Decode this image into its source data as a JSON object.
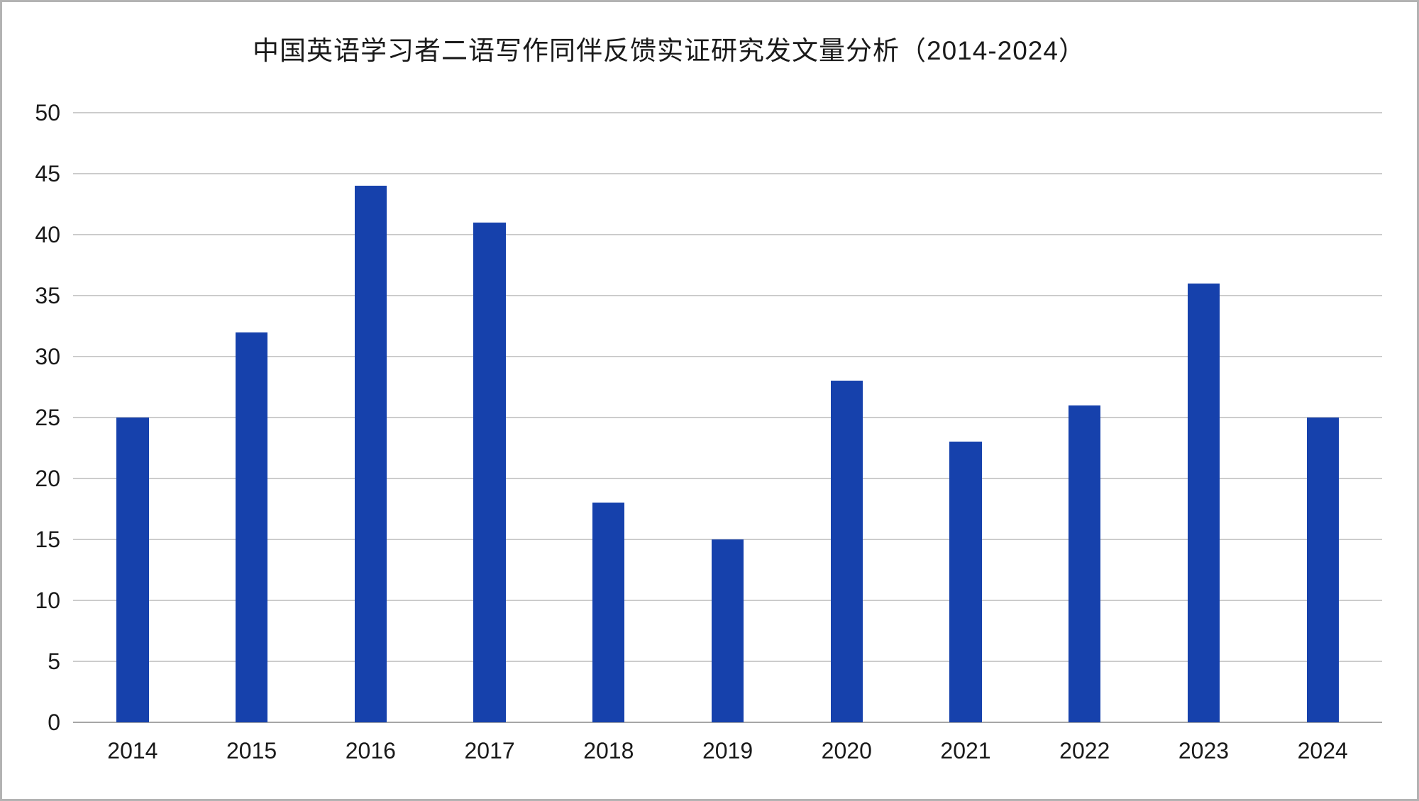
{
  "chart_data": {
    "type": "bar",
    "title": "中国英语学习者二语写作同伴反馈实证研究发文量分析（2014-2024）",
    "categories": [
      "2014",
      "2015",
      "2016",
      "2017",
      "2018",
      "2019",
      "2020",
      "2021",
      "2022",
      "2023",
      "2024"
    ],
    "values": [
      25,
      32,
      44,
      41,
      18,
      15,
      28,
      23,
      26,
      36,
      25
    ],
    "xlabel": "",
    "ylabel": "",
    "ylim": [
      0,
      50
    ],
    "ytick_interval": 5,
    "grid": true,
    "legend": false,
    "bar_color": "#1641AC",
    "gridline_color": "#cccccc",
    "text_color": "#1a1a1a"
  }
}
